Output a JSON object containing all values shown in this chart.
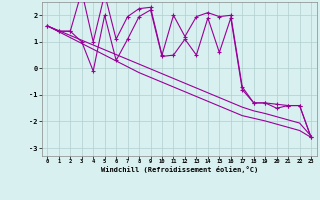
{
  "x": [
    0,
    1,
    2,
    3,
    4,
    5,
    6,
    7,
    8,
    9,
    10,
    11,
    12,
    13,
    14,
    15,
    16,
    17,
    18,
    19,
    20,
    21,
    22,
    23
  ],
  "line_jagged_top": [
    1.6,
    1.4,
    1.4,
    2.9,
    1.0,
    2.8,
    1.1,
    1.95,
    2.25,
    2.3,
    0.5,
    2.0,
    1.2,
    1.95,
    2.1,
    1.95,
    2.0,
    -0.7,
    -1.3,
    -1.3,
    -1.35,
    -1.4,
    -1.4,
    -2.6
  ],
  "line_jagged_bot": [
    1.6,
    1.4,
    1.4,
    1.0,
    -0.1,
    2.0,
    0.3,
    1.1,
    1.95,
    2.2,
    0.45,
    0.5,
    1.1,
    0.5,
    1.9,
    0.6,
    1.9,
    -0.8,
    -1.3,
    -1.3,
    -1.5,
    -1.4,
    -1.4,
    -2.6
  ],
  "line_trend1": [
    1.6,
    1.42,
    1.24,
    1.06,
    0.88,
    0.7,
    0.52,
    0.34,
    0.16,
    -0.02,
    -0.2,
    -0.38,
    -0.56,
    -0.74,
    -0.92,
    -1.1,
    -1.28,
    -1.46,
    -1.6,
    -1.7,
    -1.82,
    -1.94,
    -2.06,
    -2.55
  ],
  "line_trend2": [
    1.6,
    1.38,
    1.16,
    0.94,
    0.72,
    0.5,
    0.28,
    0.06,
    -0.16,
    -0.34,
    -0.52,
    -0.7,
    -0.88,
    -1.06,
    -1.24,
    -1.42,
    -1.6,
    -1.78,
    -1.88,
    -1.98,
    -2.1,
    -2.22,
    -2.34,
    -2.6
  ],
  "color": "#990099",
  "bg_color": "#d8f0f0",
  "grid_color": "#b0cece",
  "xlabel": "Windchill (Refroidissement éolien,°C)",
  "xlim": [
    -0.5,
    23.5
  ],
  "ylim": [
    -3.3,
    2.5
  ],
  "yticks": [
    -3,
    -2,
    -1,
    0,
    1,
    2
  ],
  "xticks": [
    0,
    1,
    2,
    3,
    4,
    5,
    6,
    7,
    8,
    9,
    10,
    11,
    12,
    13,
    14,
    15,
    16,
    17,
    18,
    19,
    20,
    21,
    22,
    23
  ]
}
